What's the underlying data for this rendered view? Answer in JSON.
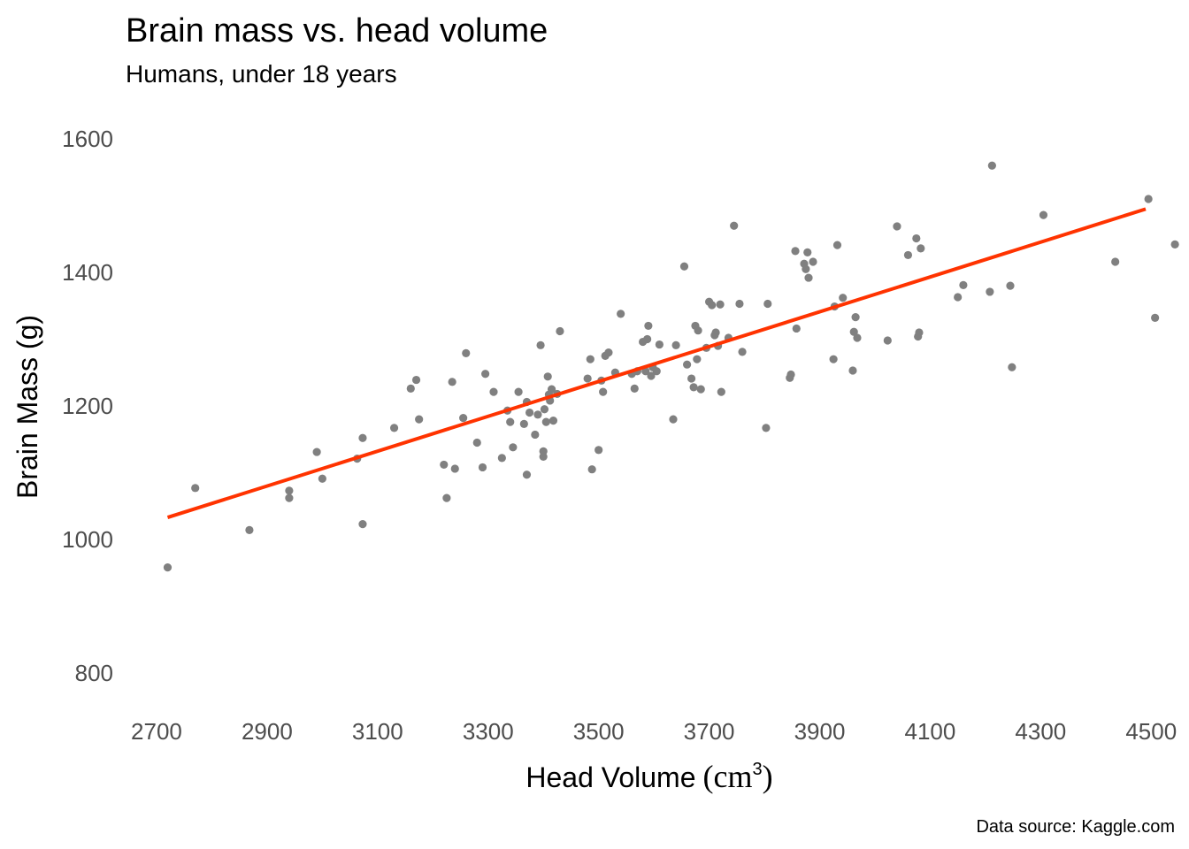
{
  "chart_data": {
    "type": "scatter",
    "title": "Brain mass vs. head volume",
    "subtitle": "Humans, under 18 years",
    "xlabel": "Head Volume",
    "xlabel_unit_open": "(",
    "xlabel_unit": "cm",
    "xlabel_unit_sup": "3",
    "xlabel_unit_close": ")",
    "ylabel": "Brain Mass (g)",
    "caption": "Data source: Kaggle.com",
    "xlim": [
      2660,
      4530
    ],
    "ylim": [
      780,
      1620
    ],
    "x_ticks": [
      "2700",
      "2900",
      "3100",
      "3300",
      "3500",
      "3700",
      "3900",
      "4100",
      "4300",
      "4500"
    ],
    "y_ticks": [
      "800",
      "1000",
      "1200",
      "1400",
      "1600"
    ],
    "grid": false,
    "point_color": "#808080",
    "trend_color": "#ff3300",
    "trend_line": {
      "x": [
        2720,
        4490
      ],
      "y": [
        1033,
        1495
      ]
    },
    "points": [
      [
        2720,
        958
      ],
      [
        2770,
        1077
      ],
      [
        2868,
        1014
      ],
      [
        2940,
        1073
      ],
      [
        2940,
        1062
      ],
      [
        2990,
        1131
      ],
      [
        3000,
        1091
      ],
      [
        3063,
        1121
      ],
      [
        3073,
        1152
      ],
      [
        3073,
        1023
      ],
      [
        3130,
        1167
      ],
      [
        3160,
        1226
      ],
      [
        3170,
        1239
      ],
      [
        3175,
        1180
      ],
      [
        3220,
        1112
      ],
      [
        3225,
        1062
      ],
      [
        3235,
        1236
      ],
      [
        3240,
        1106
      ],
      [
        3255,
        1182
      ],
      [
        3260,
        1279
      ],
      [
        3280,
        1145
      ],
      [
        3290,
        1108
      ],
      [
        3295,
        1248
      ],
      [
        3310,
        1221
      ],
      [
        3325,
        1122
      ],
      [
        3335,
        1193
      ],
      [
        3340,
        1176
      ],
      [
        3345,
        1138
      ],
      [
        3355,
        1221
      ],
      [
        3365,
        1173
      ],
      [
        3370,
        1097
      ],
      [
        3370,
        1206
      ],
      [
        3375,
        1190
      ],
      [
        3385,
        1157
      ],
      [
        3390,
        1187
      ],
      [
        3395,
        1291
      ],
      [
        3400,
        1132
      ],
      [
        3400,
        1124
      ],
      [
        3402,
        1195
      ],
      [
        3405,
        1176
      ],
      [
        3408,
        1244
      ],
      [
        3410,
        1217
      ],
      [
        3412,
        1208
      ],
      [
        3415,
        1225
      ],
      [
        3418,
        1178
      ],
      [
        3425,
        1218
      ],
      [
        3430,
        1312
      ],
      [
        3480,
        1241
      ],
      [
        3485,
        1270
      ],
      [
        3488,
        1105
      ],
      [
        3500,
        1134
      ],
      [
        3505,
        1238
      ],
      [
        3508,
        1221
      ],
      [
        3512,
        1275
      ],
      [
        3518,
        1280
      ],
      [
        3530,
        1250
      ],
      [
        3540,
        1338
      ],
      [
        3560,
        1248
      ],
      [
        3565,
        1226
      ],
      [
        3570,
        1252
      ],
      [
        3580,
        1296
      ],
      [
        3585,
        1252
      ],
      [
        3588,
        1300
      ],
      [
        3590,
        1320
      ],
      [
        3595,
        1245
      ],
      [
        3598,
        1258
      ],
      [
        3605,
        1252
      ],
      [
        3610,
        1292
      ],
      [
        3635,
        1180
      ],
      [
        3640,
        1291
      ],
      [
        3655,
        1409
      ],
      [
        3660,
        1262
      ],
      [
        3668,
        1241
      ],
      [
        3672,
        1228
      ],
      [
        3675,
        1320
      ],
      [
        3678,
        1270
      ],
      [
        3680,
        1313
      ],
      [
        3685,
        1225
      ],
      [
        3695,
        1287
      ],
      [
        3700,
        1356
      ],
      [
        3705,
        1351
      ],
      [
        3710,
        1306
      ],
      [
        3712,
        1310
      ],
      [
        3716,
        1290
      ],
      [
        3720,
        1352
      ],
      [
        3722,
        1221
      ],
      [
        3735,
        1302
      ],
      [
        3745,
        1470
      ],
      [
        3755,
        1353
      ],
      [
        3760,
        1281
      ],
      [
        3803,
        1167
      ],
      [
        3806,
        1353
      ],
      [
        3846,
        1242
      ],
      [
        3848,
        1247
      ],
      [
        3856,
        1432
      ],
      [
        3858,
        1316
      ],
      [
        3872,
        1413
      ],
      [
        3875,
        1405
      ],
      [
        3878,
        1430
      ],
      [
        3880,
        1392
      ],
      [
        3888,
        1416
      ],
      [
        3925,
        1270
      ],
      [
        3927,
        1349
      ],
      [
        3932,
        1441
      ],
      [
        3942,
        1362
      ],
      [
        3960,
        1253
      ],
      [
        3962,
        1311
      ],
      [
        3965,
        1333
      ],
      [
        3968,
        1302
      ],
      [
        4023,
        1298
      ],
      [
        4040,
        1469
      ],
      [
        4060,
        1426
      ],
      [
        4075,
        1451
      ],
      [
        4078,
        1304
      ],
      [
        4080,
        1310
      ],
      [
        4083,
        1436
      ],
      [
        4150,
        1363
      ],
      [
        4160,
        1381
      ],
      [
        4208,
        1371
      ],
      [
        4212,
        1560
      ],
      [
        4245,
        1380
      ],
      [
        4248,
        1258
      ],
      [
        4305,
        1486
      ],
      [
        4435,
        1416
      ],
      [
        4495,
        1510
      ],
      [
        4507,
        1332
      ],
      [
        4543,
        1442
      ]
    ]
  }
}
